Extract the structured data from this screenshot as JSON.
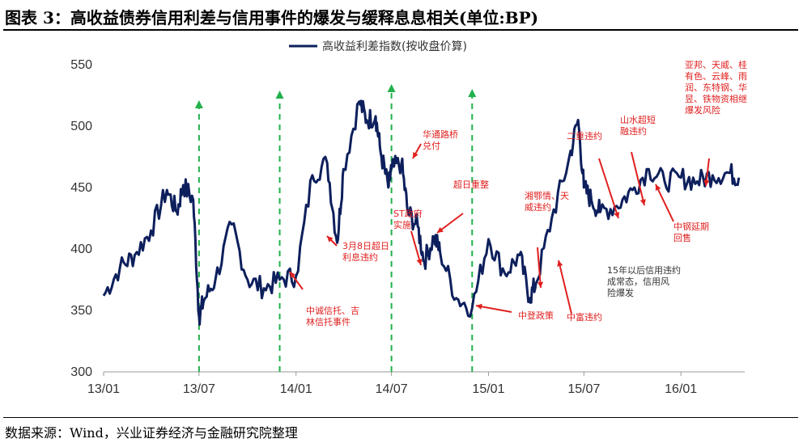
{
  "header": {
    "title": "图表 3：高收益债券信用利差与信用事件的爆发与缓释息息相关(单位:BP)"
  },
  "footer": {
    "source": "数据来源：Wind，兴业证券经济与金融研究院整理"
  },
  "colors": {
    "series": "#0d1f5c",
    "arrow_green": "#22b14c",
    "annotation_red": "#e02020"
  },
  "chart_data": {
    "type": "line",
    "title": "",
    "xlabel": "",
    "ylabel": "",
    "ylim": [
      300,
      550
    ],
    "yticks": [
      300,
      350,
      400,
      450,
      500,
      550
    ],
    "xticks": [
      "13/01",
      "13/07",
      "14/01",
      "14/07",
      "15/01",
      "15/07",
      "16/01"
    ],
    "xrange": [
      "2013-01",
      "2016-05"
    ],
    "legend_position": "top-center",
    "series": [
      {
        "name": "高收益利差指数(按收盘价算)",
        "x": [
          "2013-01",
          "2013-02",
          "2013-03",
          "2013-04",
          "2013-05",
          "2013-05-20",
          "2013-06",
          "2013-06-20",
          "2013-07-01",
          "2013-07-10",
          "2013-08",
          "2013-09",
          "2013-10",
          "2013-11",
          "2013-12",
          "2014-01",
          "2014-02",
          "2014-03",
          "2014-03-20",
          "2014-04",
          "2014-05",
          "2014-05-15",
          "2014-06",
          "2014-06-10",
          "2014-06-25",
          "2014-07",
          "2014-07-20",
          "2014-08",
          "2014-08-20",
          "2014-09",
          "2014-09-20",
          "2014-10",
          "2014-11",
          "2014-12",
          "2015-01",
          "2015-02",
          "2015-03",
          "2015-03-20",
          "2015-04",
          "2015-05",
          "2015-06",
          "2015-06-20",
          "2015-07",
          "2015-07-15",
          "2015-08",
          "2015-09",
          "2015-10",
          "2015-11",
          "2015-12",
          "2016-01",
          "2016-02",
          "2016-03",
          "2016-04",
          "2016-04-20"
        ],
        "values": [
          362,
          385,
          395,
          415,
          448,
          430,
          452,
          440,
          345,
          358,
          375,
          420,
          375,
          368,
          375,
          378,
          460,
          470,
          405,
          465,
          520,
          505,
          508,
          480,
          450,
          465,
          470,
          430,
          418,
          390,
          410,
          398,
          360,
          352,
          408,
          380,
          395,
          360,
          372,
          425,
          470,
          505,
          450,
          440,
          430,
          435,
          448,
          465,
          455,
          458,
          455,
          460,
          462,
          458
        ]
      }
    ],
    "green_arrows_at": [
      "2013-07",
      "2013-12",
      "2014-07",
      "2014-12"
    ],
    "annotations": [
      {
        "text": "中诚信托、吉林信托事件",
        "at": "2014-01"
      },
      {
        "text": "3月8日超日利息违约",
        "at": "2014-03"
      },
      {
        "text": "华通路桥兑付",
        "at": "2014-07"
      },
      {
        "text": "ST政府实施",
        "at": "2014-08"
      },
      {
        "text": "超日重整",
        "at": "2014-09"
      },
      {
        "text": "中登政策",
        "at": "2014-12"
      },
      {
        "text": "湘鄂情、天威违约",
        "at": "2015-04"
      },
      {
        "text": "中富违约",
        "at": "2015-04-20"
      },
      {
        "text": "二重违约",
        "at": "2015-07"
      },
      {
        "text": "山水超短融违约",
        "at": "2015-10"
      },
      {
        "text": "中钢延期回售",
        "at": "2015-11"
      },
      {
        "text": "亚邦、天威、桂有色、云峰、雨润、东特钢、华昱、铁物资相继爆发风险",
        "at": "2016-03"
      }
    ],
    "note": "15年以后信用违约成常态，信用风险爆发"
  }
}
